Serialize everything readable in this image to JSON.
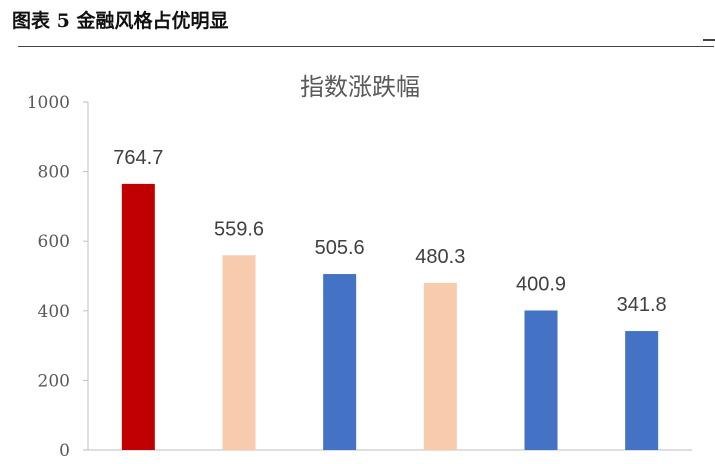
{
  "figure": {
    "title": "图表 5 金融风格占优明显"
  },
  "chart_data": {
    "type": "bar",
    "title": "指数涨跌幅",
    "xlabel": "",
    "ylabel": "",
    "categories": [
      "",
      "",
      "",
      "",
      "",
      ""
    ],
    "values": [
      764.7,
      559.6,
      505.6,
      480.3,
      400.9,
      341.8
    ],
    "data_labels": [
      "764.7",
      "559.6",
      "505.6",
      "480.3",
      "400.9",
      "341.8"
    ],
    "bar_colors": [
      "#C00000",
      "#F8CBAD",
      "#4472C4",
      "#F8CBAD",
      "#4472C4",
      "#4472C4"
    ],
    "label_colors": [
      "#C00000",
      "#404040",
      "#404040",
      "#404040",
      "#404040",
      "#404040"
    ],
    "ylim": [
      0,
      1000
    ],
    "yticks": [
      "0",
      "200",
      "400",
      "600",
      "800",
      "1000"
    ],
    "grid": false,
    "legend": "none"
  }
}
